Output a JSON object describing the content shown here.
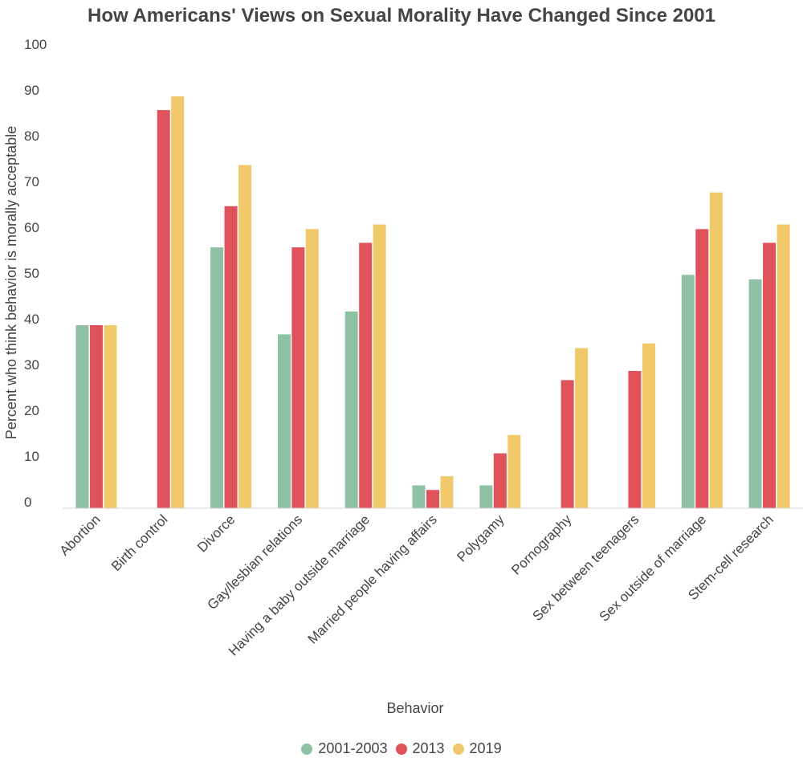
{
  "chart_data": {
    "type": "bar",
    "title": "How Americans' Views on Sexual Morality Have Changed Since 2001",
    "xlabel": "Behavior",
    "ylabel": "Percent who think behavior is morally acceptable",
    "ylim": [
      0,
      100
    ],
    "yticks": [
      "0",
      "10",
      "20",
      "30",
      "40",
      "50",
      "60",
      "70",
      "80",
      "90",
      "100"
    ],
    "grid": false,
    "legend_position": "bottom",
    "categories": [
      "Abortion",
      "Birth control",
      "Divorce",
      "Gay/lesbian relations",
      "Having a baby outside marriage",
      "Married people having affairs",
      "Polygamy",
      "Pornography",
      "Sex between teenagers",
      "Sex outside of marriage",
      "Stem-cell research"
    ],
    "series": [
      {
        "name": "2001-2003",
        "color": "#8fc2a5",
        "values": [
          40,
          null,
          57,
          38,
          43,
          5,
          5,
          null,
          null,
          51,
          50
        ]
      },
      {
        "name": "2013",
        "color": "#e0525a",
        "values": [
          40,
          87,
          66,
          57,
          58,
          4,
          12,
          28,
          30,
          61,
          58
        ]
      },
      {
        "name": "2019",
        "color": "#f1c86a",
        "values": [
          40,
          90,
          75,
          61,
          62,
          7,
          16,
          35,
          36,
          69,
          62
        ]
      }
    ]
  }
}
